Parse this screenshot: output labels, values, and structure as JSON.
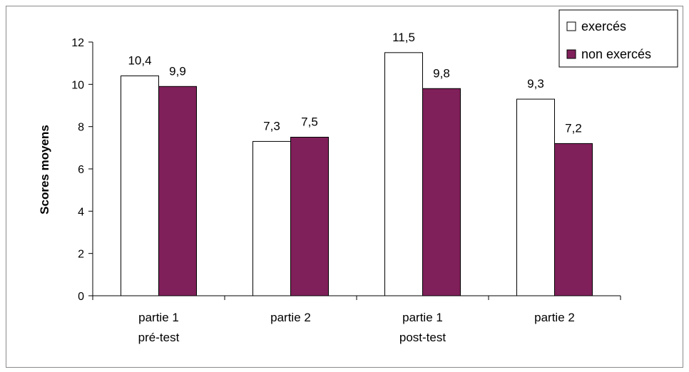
{
  "chart_data": {
    "type": "bar",
    "title": "",
    "xlabel": "",
    "ylabel": "Scores moyens",
    "ylim": [
      0,
      12
    ],
    "yticks": [
      0,
      2,
      4,
      6,
      8,
      10,
      12
    ],
    "categories": [
      [
        "partie 1",
        "pré-test"
      ],
      [
        "partie 2",
        ""
      ],
      [
        "partie 1",
        "post-test"
      ],
      [
        "partie 2",
        ""
      ]
    ],
    "series": [
      {
        "name": "exercés",
        "color": "#ffffff",
        "values": [
          10.4,
          7.3,
          11.5,
          9.3
        ],
        "labels": [
          "10,4",
          "7,3",
          "11,5",
          "9,3"
        ]
      },
      {
        "name": "non exercés",
        "color": "#80205a",
        "values": [
          9.9,
          7.5,
          9.8,
          7.2
        ],
        "labels": [
          "9,9",
          "7,5",
          "9,8",
          "7,2"
        ]
      }
    ],
    "grid": false,
    "legend_position": "top-right"
  }
}
